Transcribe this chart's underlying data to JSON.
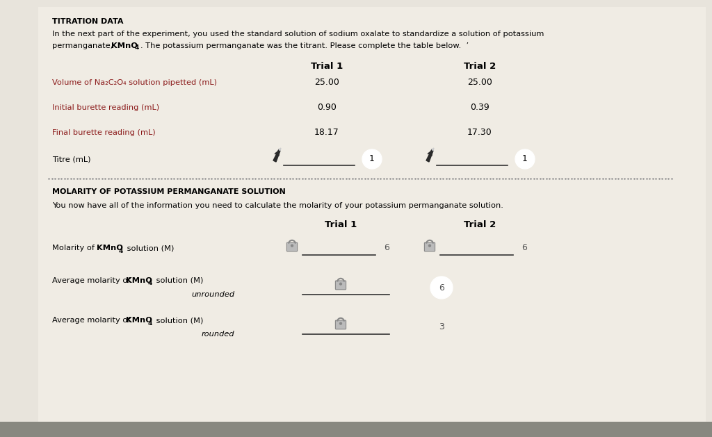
{
  "background_color": "#e8e4dc",
  "title1": "TITRATION DATA",
  "para1_line1": "In the next part of the experiment, you used the standard solution of sodium oxalate to standardize a solution of potassium",
  "para1_line2": "permanganate, KMnO₄. The potassium permanganate was the titrant. Please complete the table below.  ’",
  "trial1_header": "Trial 1",
  "trial2_header": "Trial 2",
  "row1_label": "Volume of Na₂C₂O₄ solution pipetted (mL)",
  "row1_t1": "25.00",
  "row1_t2": "25.00",
  "row2_label": "Initial burette reading (mL)",
  "row2_t1": "0.90",
  "row2_t2": "0.39",
  "row3_label": "Final burette reading (mL)",
  "row3_t1": "18.17",
  "row3_t2": "17.30",
  "row4_label": "Titre (mL)",
  "label_color": "#8b1a1a",
  "title2": "MOLARITY OF POTASSIUM PERMANGANATE SOLUTION",
  "para2": "You now have all of the information you need to calculate the molarity of your potassium permanganate solution.",
  "mol_label_plain": "Molarity of ",
  "mol_label_bold": "KMnO",
  "mol_label_sub": "4",
  "mol_label_end": " solution (M)",
  "avg_label_plain": "Average molarity of ",
  "avg_label_bold": "KMnO",
  "avg_label_sub": "4",
  "avg_label_end": " solution (M)",
  "unrounded_text": "unrounded",
  "rounded_text": "rounded",
  "suffix_mol_t1": "6",
  "suffix_mol_t2": "6",
  "suffix_avg_unr": "6",
  "suffix_avg_r": "3",
  "bottom_bar_color": "#888880"
}
